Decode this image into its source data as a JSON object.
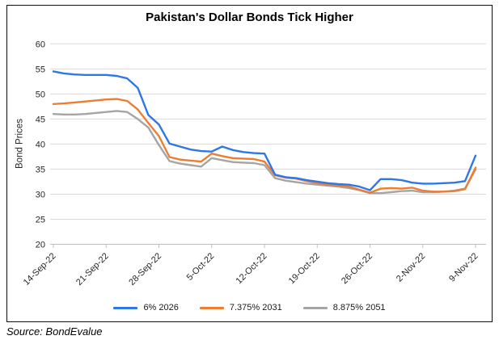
{
  "source_note": "Source: BondEvalue",
  "chart_data": {
    "type": "line",
    "title": "Pakistan's Dollar Bonds Tick Higher",
    "ylabel": "Bond Prices",
    "xlabel": "",
    "ylim": [
      20,
      60
    ],
    "ytick_step": 5,
    "ytick_labels": [
      "20",
      "25",
      "30",
      "35",
      "40",
      "45",
      "50",
      "55",
      "60"
    ],
    "grid": true,
    "gridline_color": "#d9d9d9",
    "axis_line_color": "#bfbfbf",
    "legend_position": "bottom",
    "x_tick_labels": [
      "14-Sep-22",
      "21-Sep-22",
      "28-Sep-22",
      "5-Oct-22",
      "12-Oct-22",
      "19-Oct-22",
      "26-Oct-22",
      "2-Nov-22",
      "9-Nov-22"
    ],
    "x_tick_indices": [
      0,
      5,
      10,
      15,
      20,
      25,
      30,
      35,
      40
    ],
    "x_unit": "weekday observations, weekly ticks",
    "series": [
      {
        "name": "6% 2026",
        "color": "#2e77e6",
        "values": [
          54.5,
          54.1,
          53.9,
          53.8,
          53.8,
          53.8,
          53.6,
          53.1,
          51.2,
          45.8,
          43.9,
          40.1,
          39.5,
          38.9,
          38.6,
          38.5,
          39.5,
          38.8,
          38.4,
          38.2,
          38.1,
          33.9,
          33.4,
          33.2,
          32.8,
          32.5,
          32.2,
          32.0,
          31.9,
          31.5,
          30.8,
          33.0,
          33.0,
          32.8,
          32.3,
          32.1,
          32.1,
          32.2,
          32.3,
          32.6,
          37.7
        ]
      },
      {
        "name": "7.375% 2031",
        "color": "#ed7d31",
        "values": [
          48.0,
          48.1,
          48.3,
          48.5,
          48.7,
          48.9,
          49.0,
          48.6,
          46.9,
          44.2,
          41.6,
          37.4,
          36.9,
          36.7,
          36.5,
          38.1,
          37.6,
          37.2,
          37.1,
          37.0,
          36.5,
          33.8,
          33.3,
          33.1,
          32.6,
          32.2,
          31.9,
          31.7,
          31.5,
          30.9,
          30.3,
          31.1,
          31.2,
          31.1,
          31.3,
          30.7,
          30.5,
          30.5,
          30.6,
          31.0,
          35.3
        ]
      },
      {
        "name": "8.875% 2051",
        "color": "#a5a5a5",
        "values": [
          46.0,
          45.9,
          45.9,
          46.0,
          46.2,
          46.4,
          46.6,
          46.4,
          45.0,
          43.3,
          39.8,
          36.6,
          36.1,
          35.8,
          35.5,
          37.2,
          36.8,
          36.4,
          36.3,
          36.2,
          35.8,
          33.2,
          32.7,
          32.4,
          32.1,
          31.9,
          31.7,
          31.5,
          31.2,
          30.8,
          30.2,
          30.2,
          30.4,
          30.6,
          30.7,
          30.4,
          30.4,
          30.5,
          30.7,
          31.1,
          34.9
        ]
      }
    ]
  }
}
